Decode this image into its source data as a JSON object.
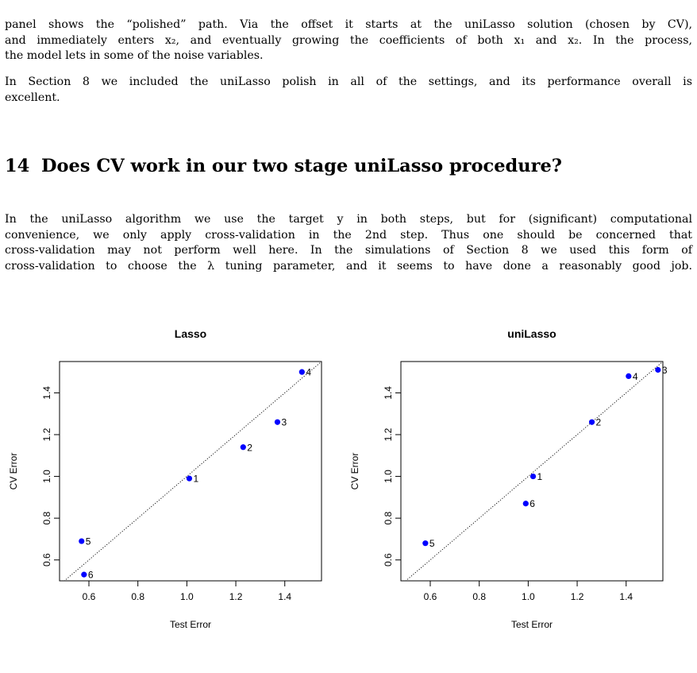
{
  "para1": {
    "lines": [
      "panel shows the “polished” path. Via the offset it starts at the uniLasso solution (chosen by CV),",
      "and immediately enters x₂, and eventually growing the coefficients of both x₁ and x₂. In the process,",
      "the model lets in some of the noise variables."
    ]
  },
  "para2": {
    "lines": [
      "In Section 8 we included the uniLasso polish in all of the settings, and its performance overall is",
      "excellent."
    ]
  },
  "section": {
    "number": "14",
    "title": "Does CV work in our two stage uniLasso procedure?"
  },
  "para3": {
    "lines": [
      "In the uniLasso algorithm we use the target y in both steps, but for (significant) computational",
      "convenience, we only apply cross-validation in the 2nd step. Thus one should be concerned that",
      "cross-validation may not perform well here. In the simulations of Section 8 we used this form of",
      "cross-validation to choose the λ tuning parameter, and it seems to have done a reasonably good job."
    ]
  },
  "chart_data": [
    {
      "type": "scatter",
      "title": "Lasso",
      "xlabel": "Test Error",
      "ylabel": "CV Error",
      "xlim": [
        0.48,
        1.55
      ],
      "ylim": [
        0.5,
        1.55
      ],
      "xticks": [
        "0.6",
        "0.8",
        "1.0",
        "1.2",
        "1.4"
      ],
      "yticks": [
        "0.6",
        "0.8",
        "1.0",
        "1.2",
        "1.4"
      ],
      "reference_line": "y = x (dotted)",
      "point_color": "#0000ff",
      "points": [
        {
          "label": "1",
          "x": 1.01,
          "y": 0.99
        },
        {
          "label": "2",
          "x": 1.23,
          "y": 1.14
        },
        {
          "label": "3",
          "x": 1.37,
          "y": 1.26
        },
        {
          "label": "4",
          "x": 1.47,
          "y": 1.5
        },
        {
          "label": "5",
          "x": 0.57,
          "y": 0.69
        },
        {
          "label": "6",
          "x": 0.58,
          "y": 0.53
        }
      ]
    },
    {
      "type": "scatter",
      "title": "uniLasso",
      "xlabel": "Test Error",
      "ylabel": "CV Error",
      "xlim": [
        0.48,
        1.55
      ],
      "ylim": [
        0.5,
        1.55
      ],
      "xticks": [
        "0.6",
        "0.8",
        "1.0",
        "1.2",
        "1.4"
      ],
      "yticks": [
        "0.6",
        "0.8",
        "1.0",
        "1.2",
        "1.4"
      ],
      "reference_line": "y = x (dotted)",
      "point_color": "#0000ff",
      "points": [
        {
          "label": "1",
          "x": 1.02,
          "y": 1.0
        },
        {
          "label": "2",
          "x": 1.26,
          "y": 1.26
        },
        {
          "label": "3",
          "x": 1.53,
          "y": 1.51
        },
        {
          "label": "4",
          "x": 1.41,
          "y": 1.48
        },
        {
          "label": "5",
          "x": 0.58,
          "y": 0.68
        },
        {
          "label": "6",
          "x": 0.99,
          "y": 0.87
        }
      ]
    }
  ]
}
